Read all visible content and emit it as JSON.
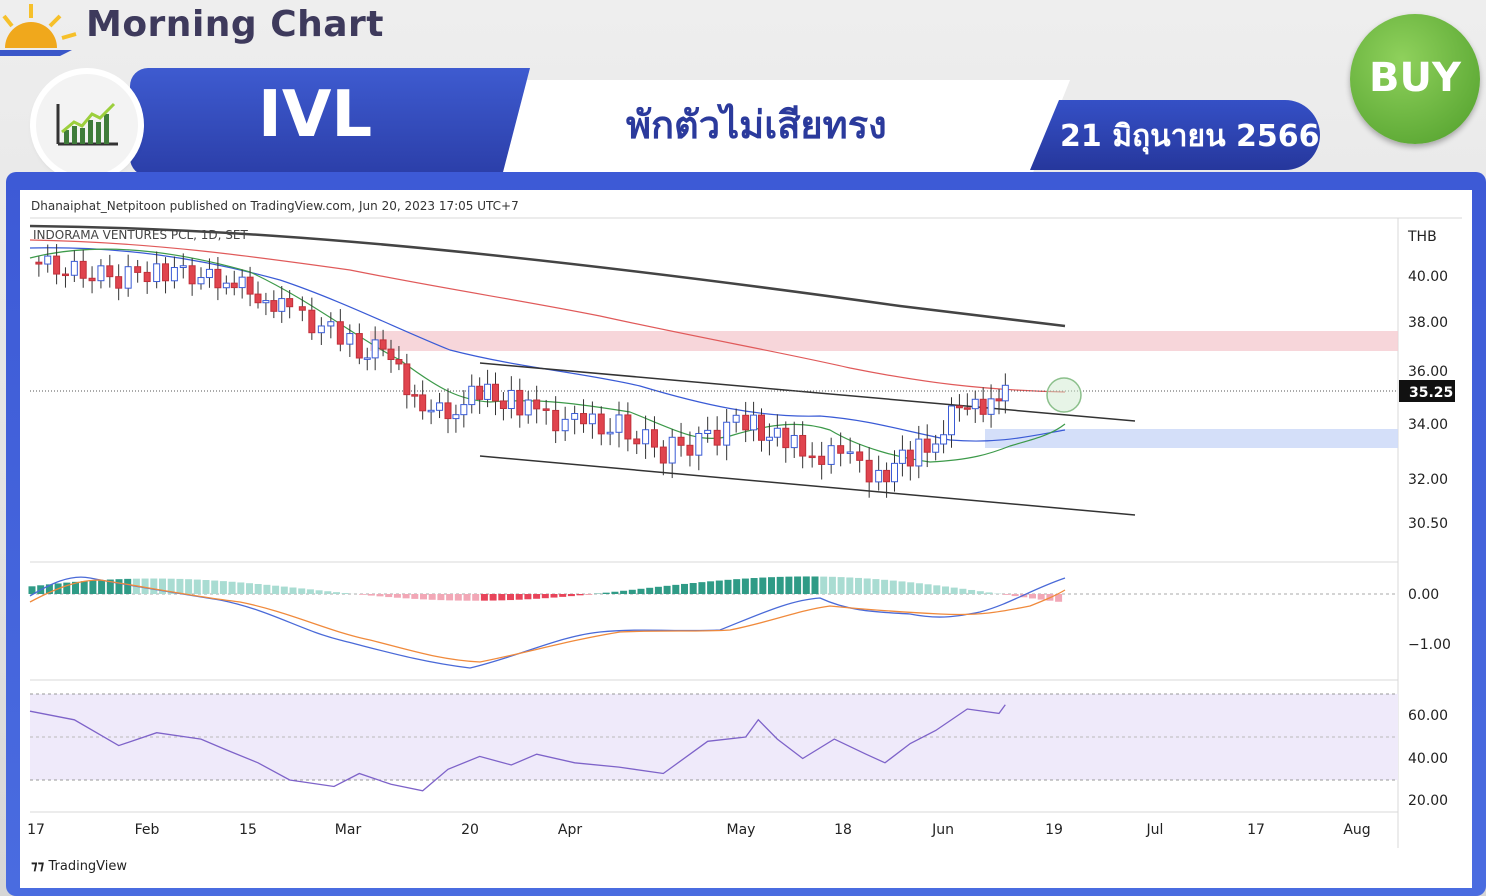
{
  "header": {
    "brand": "Morning Chart",
    "ticker": "IVL",
    "headline": "พักตัวไม่เสียทรง",
    "date": "21 มิถุนายน 2566",
    "signal": "BUY"
  },
  "icons": [
    "sun-icon",
    "chart-growth-icon",
    "tradingview-logo-icon"
  ],
  "colors": {
    "banner_blue": "#2e44b4",
    "buy_green": "#5fae36",
    "candle_up": "#ffffff",
    "candle_down": "#e0444e",
    "ma_black": "#444444",
    "ma_red": "#e05a5a",
    "ma_blue": "#3a5bd6",
    "ma_green": "#3d9a4a",
    "macd_line": "#4a6ad8",
    "signal_line": "#f08a3c",
    "rsi_line": "#7e63c9",
    "resistance_zone": "#f6cfd3",
    "support_zone": "#cfdcf8"
  },
  "publisher_text": "Dhanaiphat_Netpitoon published on TradingView.com, Jun 20, 2023 17:05 UTC+7",
  "symbol_text": "INDORAMA VENTURES PCL, 1D, SET",
  "footer_text": "TradingView",
  "chart_data": [
    {
      "type": "candlestick",
      "currency_label": "THB",
      "last_price": "35.25",
      "y_ticks": [
        "40.00",
        "38.00",
        "36.00",
        "34.00",
        "32.00",
        "30.50"
      ],
      "y_tick_values": [
        40,
        38,
        36,
        34,
        32,
        30.5
      ],
      "ylim": [
        29.6,
        41.0
      ],
      "x_ticks": [
        "17",
        "Feb",
        "15",
        "Mar",
        "20",
        "Apr",
        "May",
        "18",
        "Jun",
        "19",
        "Jul",
        "17",
        "Aug"
      ],
      "x_range": [
        "2023-01-17",
        "2023-08-21"
      ],
      "resistance_zone": [
        36.8,
        37.6
      ],
      "support_zone": [
        32.9,
        33.7
      ],
      "channel_upper": [
        [
          "2023-03-20",
          35.8
        ],
        [
          "2023-06-26",
          33.7
        ]
      ],
      "channel_lower": [
        [
          "2023-03-20",
          32.5
        ],
        [
          "2023-06-26",
          30.5
        ]
      ],
      "close_series": [
        [
          "2023-01-17",
          40.6
        ],
        [
          "2023-01-24",
          40.2
        ],
        [
          "2023-01-31",
          39.9
        ],
        [
          "2023-02-06",
          40.3
        ],
        [
          "2023-02-13",
          40.0
        ],
        [
          "2023-02-17",
          39.8
        ],
        [
          "2023-02-22",
          39.2
        ],
        [
          "2023-02-27",
          38.5
        ],
        [
          "2023-03-01",
          38.2
        ],
        [
          "2023-03-07",
          37.4
        ],
        [
          "2023-03-10",
          36.8
        ],
        [
          "2023-03-15",
          36.9
        ],
        [
          "2023-03-20",
          34.2
        ],
        [
          "2023-03-24",
          34.6
        ],
        [
          "2023-03-29",
          35.1
        ],
        [
          "2023-04-03",
          34.9
        ],
        [
          "2023-04-07",
          34.4
        ],
        [
          "2023-04-13",
          34.0
        ],
        [
          "2023-04-20",
          33.9
        ],
        [
          "2023-04-27",
          33.0
        ],
        [
          "2023-05-04",
          33.5
        ],
        [
          "2023-05-10",
          34.2
        ],
        [
          "2023-05-15",
          33.4
        ],
        [
          "2023-05-19",
          33.0
        ],
        [
          "2023-05-25",
          32.8
        ],
        [
          "2023-05-31",
          32.2
        ],
        [
          "2023-06-05",
          32.8
        ],
        [
          "2023-06-09",
          33.5
        ],
        [
          "2023-06-14",
          35.0
        ],
        [
          "2023-06-19",
          34.6
        ],
        [
          "2023-06-20",
          35.25
        ]
      ]
    },
    {
      "type": "line",
      "panel": "macd",
      "y_ticks": [
        "0.00",
        "−1.00"
      ],
      "y_tick_values": [
        0,
        -1
      ],
      "ylim": [
        -1.6,
        0.4
      ]
    },
    {
      "type": "line",
      "panel": "rsi",
      "y_ticks": [
        "60.00",
        "40.00",
        "20.00"
      ],
      "y_tick_values": [
        60,
        40,
        20
      ],
      "ylim": [
        15,
        75
      ],
      "rsi_series": [
        [
          "2023-01-17",
          62
        ],
        [
          "2023-01-24",
          58
        ],
        [
          "2023-01-31",
          46
        ],
        [
          "2023-02-06",
          52
        ],
        [
          "2023-02-13",
          49
        ],
        [
          "2023-02-17",
          44
        ],
        [
          "2023-02-22",
          38
        ],
        [
          "2023-02-27",
          30
        ],
        [
          "2023-03-06",
          27
        ],
        [
          "2023-03-10",
          33
        ],
        [
          "2023-03-15",
          28
        ],
        [
          "2023-03-20",
          25
        ],
        [
          "2023-03-24",
          35
        ],
        [
          "2023-03-29",
          41
        ],
        [
          "2023-04-03",
          37
        ],
        [
          "2023-04-07",
          42
        ],
        [
          "2023-04-13",
          38
        ],
        [
          "2023-04-20",
          36
        ],
        [
          "2023-04-27",
          33
        ],
        [
          "2023-05-04",
          48
        ],
        [
          "2023-05-10",
          50
        ],
        [
          "2023-05-12",
          58
        ],
        [
          "2023-05-15",
          49
        ],
        [
          "2023-05-19",
          40
        ],
        [
          "2023-05-24",
          49
        ],
        [
          "2023-05-29",
          42
        ],
        [
          "2023-06-01",
          38
        ],
        [
          "2023-06-05",
          47
        ],
        [
          "2023-06-09",
          53
        ],
        [
          "2023-06-14",
          63
        ],
        [
          "2023-06-19",
          61
        ],
        [
          "2023-06-20",
          65
        ]
      ]
    }
  ]
}
